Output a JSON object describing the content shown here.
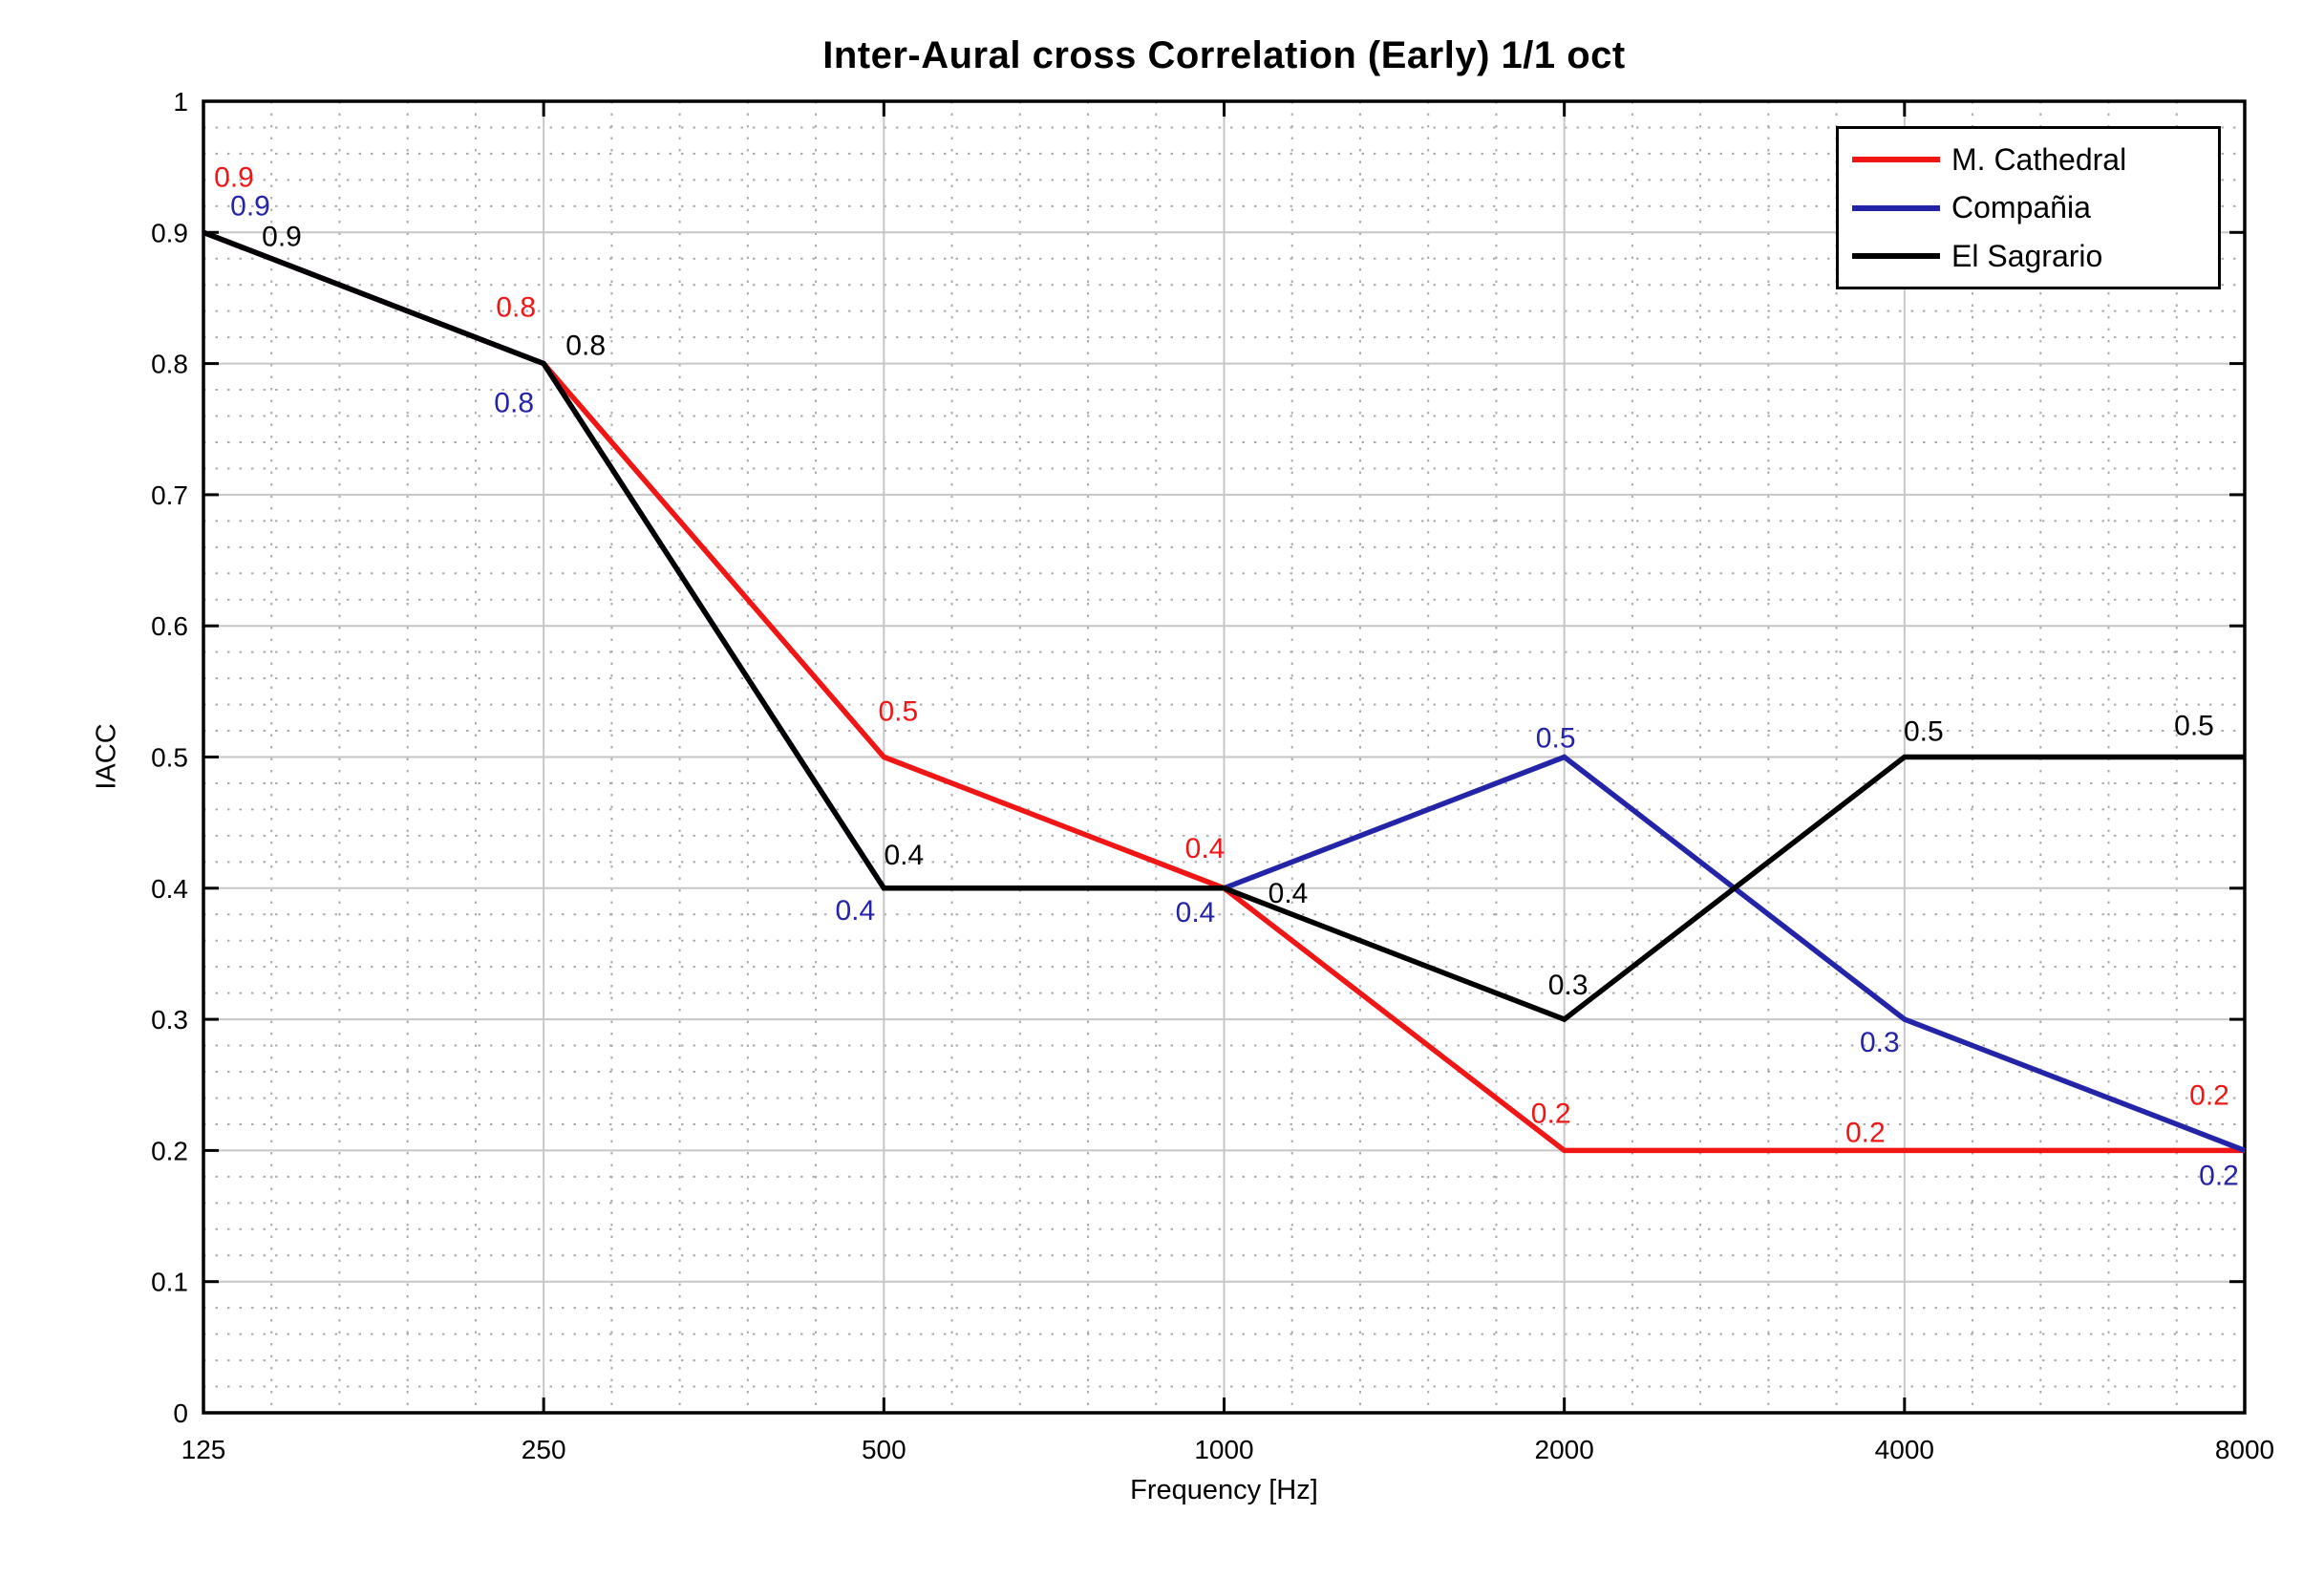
{
  "chart_data": {
    "type": "line",
    "title": "Inter-Aural cross Correlation (Early) 1/1 oct",
    "xlabel": "Frequency [Hz]",
    "ylabel": "IACC",
    "x_scale": "log-octave",
    "x_values": [
      125,
      250,
      500,
      1000,
      2000,
      4000,
      8000
    ],
    "x_tick_labels": [
      "125",
      "250",
      "500",
      "1000",
      "2000",
      "4000",
      "8000"
    ],
    "ylim": [
      0,
      1
    ],
    "y_tick_labels": [
      "0",
      "0.1",
      "0.2",
      "0.3",
      "0.4",
      "0.5",
      "0.6",
      "0.7",
      "0.8",
      "0.9",
      "1"
    ],
    "grid": {
      "major": true,
      "minor": true,
      "minor_style": "dotted"
    },
    "legend_position": "top-right",
    "series": [
      {
        "name": "M. Cathedral",
        "color": "#f01616",
        "values": [
          0.9,
          0.8,
          0.5,
          0.4,
          0.2,
          0.2,
          0.2
        ],
        "point_labels": [
          "0.9",
          "0.8",
          "0.5",
          "0.4",
          "0.2",
          "0.2",
          "0.2"
        ],
        "label_offsets": [
          [
            32,
            -58
          ],
          [
            -29,
            -59
          ],
          [
            15,
            -48
          ],
          [
            -20,
            -42
          ],
          [
            -14,
            -39
          ],
          [
            -41,
            -19
          ],
          [
            -37,
            -58
          ]
        ]
      },
      {
        "name": "Compañia",
        "color": "#2424a8",
        "values": [
          0.9,
          0.8,
          0.4,
          0.4,
          0.5,
          0.3,
          0.2
        ],
        "point_labels": [
          "0.9",
          "0.8",
          "0.4",
          "0.4",
          "0.5",
          "0.3",
          "0.2"
        ],
        "label_offsets": [
          [
            49,
            -28
          ],
          [
            -31,
            41
          ],
          [
            -30,
            23
          ],
          [
            -30,
            25
          ],
          [
            -9,
            -20
          ],
          [
            -26,
            24
          ],
          [
            -27,
            26
          ]
        ]
      },
      {
        "name": "El Sagrario",
        "color": "#000000",
        "values": [
          0.9,
          0.8,
          0.4,
          0.4,
          0.3,
          0.5,
          0.5
        ],
        "point_labels": [
          "0.9",
          "0.8",
          "0.4",
          "0.4",
          "0.3",
          "0.5",
          "0.5"
        ],
        "label_offsets": [
          [
            82,
            4
          ],
          [
            44,
            -19
          ],
          [
            21,
            -35
          ],
          [
            67,
            5
          ],
          [
            4,
            -36
          ],
          [
            20,
            -27
          ],
          [
            -53,
            -33
          ]
        ]
      }
    ]
  }
}
